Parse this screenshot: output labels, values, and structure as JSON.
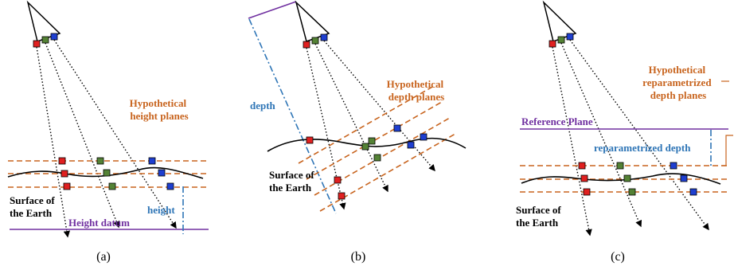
{
  "panels": [
    {
      "caption": "(a)",
      "title": "Hypothetical height planes",
      "title_lines": [
        "Hypothetical",
        "height planes"
      ],
      "surface_lines": [
        "Surface of",
        "the Earth"
      ],
      "datum_label": "Height datum",
      "measure_label": "height"
    },
    {
      "caption": "(b)",
      "title_lines": [
        "Hypothetical",
        "depth planes"
      ],
      "surface_lines": [
        "Surface of",
        "the Earth"
      ],
      "measure_label": "depth"
    },
    {
      "caption": "(c)",
      "title_lines": [
        "Hypothetical",
        "reparametrized",
        "depth planes"
      ],
      "reference_label": "Reference Plane",
      "measure_label": "reparametrized depth",
      "surface_lines": [
        "Surface of",
        "the Earth"
      ]
    }
  ],
  "colors": {
    "camera_red": "#e02020",
    "camera_green": "#548235",
    "camera_blue": "#1f3fd0",
    "planes": "#c8641e",
    "datum": "#7030a0",
    "measure": "#2e75b6"
  }
}
